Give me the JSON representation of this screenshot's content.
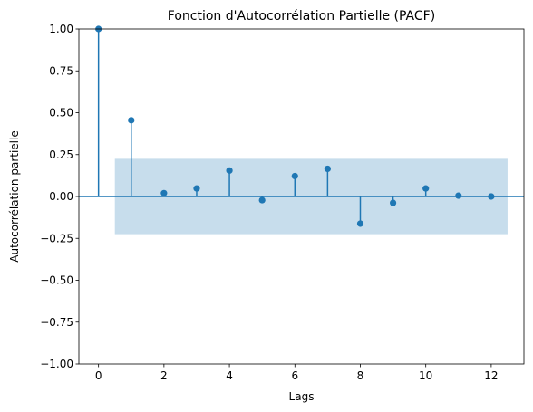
{
  "chart_data": {
    "type": "stem",
    "title": "Fonction d'Autocorrélation Partielle (PACF)",
    "xlabel": "Lags",
    "ylabel": "Autocorrélation partielle",
    "x": [
      0,
      1,
      2,
      3,
      4,
      5,
      6,
      7,
      8,
      9,
      10,
      11,
      12
    ],
    "values": [
      1.0,
      0.455,
      0.02,
      0.048,
      0.155,
      -0.022,
      0.122,
      0.165,
      -0.162,
      -0.038,
      0.048,
      0.005,
      0.0
    ],
    "confidence_band": {
      "x_from": 0.5,
      "x_to": 12.5,
      "lower": -0.225,
      "upper": 0.225
    },
    "xlim": [
      -0.6,
      13.0
    ],
    "ylim": [
      -1.0,
      1.0
    ],
    "xticks": [
      0,
      2,
      4,
      6,
      8,
      10,
      12
    ],
    "yticks": [
      -1.0,
      -0.75,
      -0.5,
      -0.25,
      0.0,
      0.25,
      0.5,
      0.75,
      1.0
    ],
    "xtick_labels": [
      "0",
      "2",
      "4",
      "6",
      "8",
      "10",
      "12"
    ],
    "ytick_labels": [
      "−1.00",
      "−0.75",
      "−0.50",
      "−0.25",
      "0.00",
      "0.25",
      "0.50",
      "0.75",
      "1.00"
    ],
    "grid": false,
    "colors": {
      "stem": "#1f77b4",
      "band": "#1f77b4",
      "axes": "#000000"
    }
  }
}
